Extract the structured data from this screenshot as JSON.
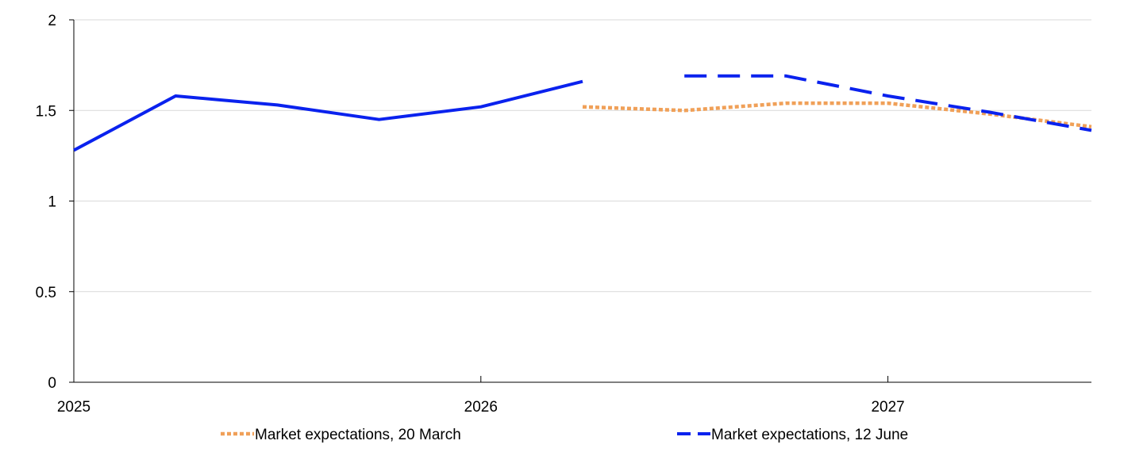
{
  "chart_data": {
    "type": "line",
    "title": "",
    "xlabel": "",
    "ylabel": "",
    "xlim": [
      2025.0,
      2027.5
    ],
    "ylim": [
      0,
      2
    ],
    "yticks": [
      0,
      0.5,
      1,
      1.5,
      2
    ],
    "yticks_labels": [
      "0",
      "0.5",
      "1",
      "1.5",
      "2"
    ],
    "xticks": [
      2025,
      2026,
      2027
    ],
    "xticks_labels": [
      "2025",
      "2026",
      "2027"
    ],
    "grid": "horizontal",
    "legend_position": "bottom",
    "series": [
      {
        "name": "",
        "style": "solid",
        "color": "#0a22ee",
        "x": [
          2025.0,
          2025.25,
          2025.5,
          2025.75,
          2026.0,
          2026.25
        ],
        "y": [
          1.28,
          1.58,
          1.53,
          1.45,
          1.52,
          1.66
        ]
      },
      {
        "name": "Market expectations, 20 March",
        "style": "dotted",
        "color": "#f0a058",
        "x": [
          2026.25,
          2026.5,
          2026.75,
          2027.0,
          2027.25,
          2027.5
        ],
        "y": [
          1.52,
          1.5,
          1.54,
          1.54,
          1.48,
          1.41
        ]
      },
      {
        "name": "Market expectations, 12 June",
        "style": "dashed",
        "color": "#0a22ee",
        "x": [
          2026.5,
          2026.75,
          2027.0,
          2027.25,
          2027.5
        ],
        "y": [
          1.69,
          1.69,
          1.58,
          1.49,
          1.39
        ]
      }
    ]
  }
}
